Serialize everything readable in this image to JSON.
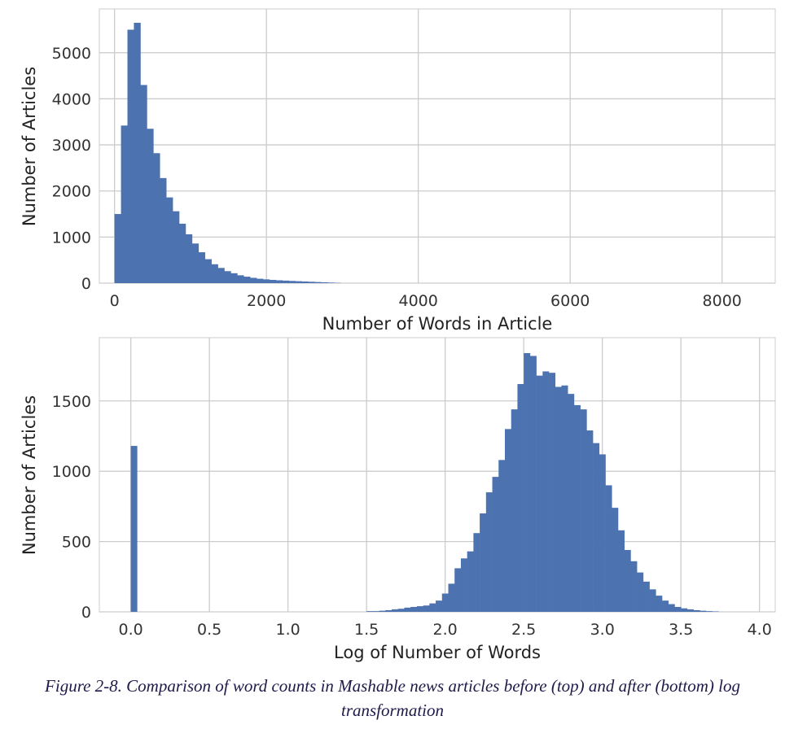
{
  "chart_data": [
    {
      "type": "bar",
      "title": "",
      "xlabel": "Number of Words in Article",
      "ylabel": "Number of Articles",
      "xlim": [
        -200,
        8700
      ],
      "ylim": [
        0,
        5950
      ],
      "xticks": [
        0,
        2000,
        4000,
        6000,
        8000
      ],
      "yticks": [
        0,
        1000,
        2000,
        3000,
        4000,
        5000
      ],
      "grid": true,
      "bar_color": "#4c72b0",
      "bin_width": 85,
      "bins": [
        {
          "x": 0,
          "y": 1500
        },
        {
          "x": 85,
          "y": 3420
        },
        {
          "x": 170,
          "y": 5500
        },
        {
          "x": 255,
          "y": 5650
        },
        {
          "x": 340,
          "y": 4300
        },
        {
          "x": 425,
          "y": 3350
        },
        {
          "x": 510,
          "y": 2820
        },
        {
          "x": 595,
          "y": 2280
        },
        {
          "x": 680,
          "y": 1860
        },
        {
          "x": 765,
          "y": 1560
        },
        {
          "x": 850,
          "y": 1290
        },
        {
          "x": 935,
          "y": 1060
        },
        {
          "x": 1020,
          "y": 860
        },
        {
          "x": 1105,
          "y": 670
        },
        {
          "x": 1190,
          "y": 520
        },
        {
          "x": 1275,
          "y": 410
        },
        {
          "x": 1360,
          "y": 330
        },
        {
          "x": 1445,
          "y": 260
        },
        {
          "x": 1530,
          "y": 215
        },
        {
          "x": 1615,
          "y": 170
        },
        {
          "x": 1700,
          "y": 140
        },
        {
          "x": 1785,
          "y": 115
        },
        {
          "x": 1870,
          "y": 95
        },
        {
          "x": 1955,
          "y": 82
        },
        {
          "x": 2040,
          "y": 70
        },
        {
          "x": 2125,
          "y": 62
        },
        {
          "x": 2210,
          "y": 55
        },
        {
          "x": 2295,
          "y": 48
        },
        {
          "x": 2380,
          "y": 42
        },
        {
          "x": 2465,
          "y": 36
        },
        {
          "x": 2550,
          "y": 30
        },
        {
          "x": 2635,
          "y": 24
        },
        {
          "x": 2720,
          "y": 18
        },
        {
          "x": 2805,
          "y": 12
        },
        {
          "x": 2890,
          "y": 6
        }
      ]
    },
    {
      "type": "bar",
      "title": "",
      "xlabel": "Log of Number of Words",
      "ylabel": "Number of Articles",
      "xlim": [
        -0.2,
        4.1
      ],
      "ylim": [
        0,
        1950
      ],
      "xticks": [
        0.0,
        0.5,
        1.0,
        1.5,
        2.0,
        2.5,
        3.0,
        3.5,
        4.0
      ],
      "yticks": [
        0,
        500,
        1000,
        1500
      ],
      "grid": true,
      "bar_color": "#4c72b0",
      "bin_width": 0.0394,
      "bins": [
        {
          "x": 0.0,
          "y": 1180
        },
        {
          "x": 1.5,
          "y": 5
        },
        {
          "x": 1.54,
          "y": 5
        },
        {
          "x": 1.58,
          "y": 8
        },
        {
          "x": 1.62,
          "y": 12
        },
        {
          "x": 1.66,
          "y": 18
        },
        {
          "x": 1.7,
          "y": 22
        },
        {
          "x": 1.74,
          "y": 30
        },
        {
          "x": 1.78,
          "y": 35
        },
        {
          "x": 1.82,
          "y": 40
        },
        {
          "x": 1.86,
          "y": 45
        },
        {
          "x": 1.9,
          "y": 60
        },
        {
          "x": 1.94,
          "y": 80
        },
        {
          "x": 1.98,
          "y": 130
        },
        {
          "x": 2.02,
          "y": 200
        },
        {
          "x": 2.06,
          "y": 310
        },
        {
          "x": 2.1,
          "y": 380
        },
        {
          "x": 2.14,
          "y": 430
        },
        {
          "x": 2.18,
          "y": 560
        },
        {
          "x": 2.22,
          "y": 700
        },
        {
          "x": 2.26,
          "y": 850
        },
        {
          "x": 2.3,
          "y": 960
        },
        {
          "x": 2.34,
          "y": 1080
        },
        {
          "x": 2.38,
          "y": 1300
        },
        {
          "x": 2.42,
          "y": 1440
        },
        {
          "x": 2.46,
          "y": 1620
        },
        {
          "x": 2.5,
          "y": 1840
        },
        {
          "x": 2.54,
          "y": 1820
        },
        {
          "x": 2.58,
          "y": 1680
        },
        {
          "x": 2.62,
          "y": 1710
        },
        {
          "x": 2.66,
          "y": 1700
        },
        {
          "x": 2.7,
          "y": 1600
        },
        {
          "x": 2.74,
          "y": 1610
        },
        {
          "x": 2.78,
          "y": 1550
        },
        {
          "x": 2.82,
          "y": 1470
        },
        {
          "x": 2.86,
          "y": 1440
        },
        {
          "x": 2.9,
          "y": 1290
        },
        {
          "x": 2.94,
          "y": 1200
        },
        {
          "x": 2.98,
          "y": 1120
        },
        {
          "x": 3.02,
          "y": 900
        },
        {
          "x": 3.06,
          "y": 740
        },
        {
          "x": 3.1,
          "y": 580
        },
        {
          "x": 3.14,
          "y": 440
        },
        {
          "x": 3.18,
          "y": 360
        },
        {
          "x": 3.22,
          "y": 280
        },
        {
          "x": 3.26,
          "y": 215
        },
        {
          "x": 3.3,
          "y": 160
        },
        {
          "x": 3.34,
          "y": 115
        },
        {
          "x": 3.38,
          "y": 80
        },
        {
          "x": 3.42,
          "y": 55
        },
        {
          "x": 3.46,
          "y": 35
        },
        {
          "x": 3.5,
          "y": 25
        },
        {
          "x": 3.54,
          "y": 18
        },
        {
          "x": 3.58,
          "y": 12
        },
        {
          "x": 3.62,
          "y": 8
        },
        {
          "x": 3.66,
          "y": 5
        },
        {
          "x": 3.7,
          "y": 3
        }
      ]
    }
  ],
  "caption": "Figure 2-8. Comparison of word counts in Mashable news articles before (top) and after (bottom) log transformation"
}
